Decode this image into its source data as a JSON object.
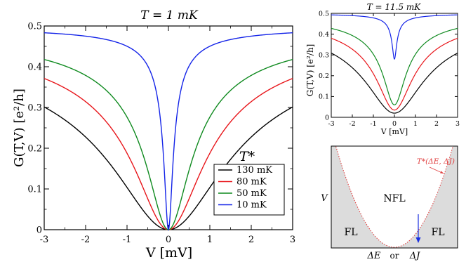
{
  "chart_data": [
    {
      "type": "line",
      "title": "T = 1 mK",
      "xlabel": "V [mV]",
      "ylabel": "G(T,V)  [e²/h]",
      "xlim": [
        -3,
        3
      ],
      "ylim": [
        0,
        0.5
      ],
      "xticks": [
        "-3",
        "-2",
        "-1",
        "0",
        "1",
        "2",
        "3"
      ],
      "yticks": [
        "0",
        "0.1",
        "0.2",
        "0.3",
        "0.4",
        "0.5"
      ],
      "legend_title": "T*",
      "legend_position": "bottom-right",
      "grid": false,
      "series": [
        {
          "name": "130 mK",
          "color": "#000000",
          "width_V": 1.3
        },
        {
          "name": "80 mK",
          "color": "#e8161b",
          "width_V": 0.8
        },
        {
          "name": "50 mK",
          "color": "#0f8a1f",
          "width_V": 0.5
        },
        {
          "name": "10 mK",
          "color": "#1424e8",
          "width_V": 0.1
        }
      ]
    },
    {
      "type": "line",
      "title": "T = 11.5 mK",
      "xlabel": "V [mV]",
      "ylabel": "G(T,V)  [e²/h]",
      "xlim": [
        -3,
        3
      ],
      "ylim": [
        0,
        0.5
      ],
      "xticks": [
        "-3",
        "-2",
        "-1",
        "0",
        "1",
        "2",
        "3"
      ],
      "yticks": [
        "0",
        "0.1",
        "0.2",
        "0.3",
        "0.4",
        "0.5"
      ],
      "grid": false,
      "series": [
        {
          "color": "#000000",
          "width_V": 1.3,
          "min": 0.02
        },
        {
          "color": "#e8161b",
          "width_V": 0.8,
          "min": 0.035
        },
        {
          "color": "#0f8a1f",
          "width_V": 0.5,
          "min": 0.06
        },
        {
          "color": "#1424e8",
          "width_V": 0.1,
          "min": 0.28
        }
      ]
    }
  ],
  "phase_diagram": {
    "ylabel": "V",
    "xlabel_left": "ΔE",
    "xlabel_mid": "or",
    "xlabel_right": "ΔJ",
    "region_center": "NFL",
    "region_left": "FL",
    "region_right": "FL",
    "crossover_label": "T*(ΔE, ΔJ)",
    "colors": {
      "shade": "#dcdcdc",
      "boundary": "#e04040",
      "arrow": "#1a2fe0"
    }
  }
}
